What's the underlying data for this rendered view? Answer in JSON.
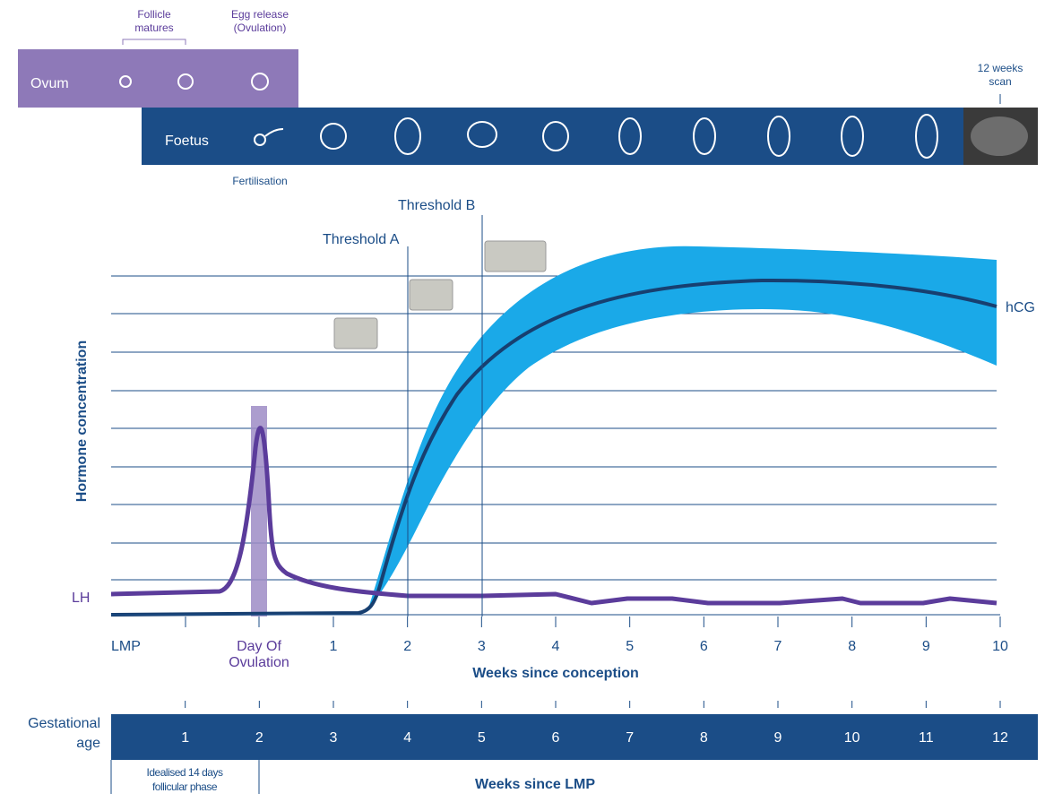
{
  "stages": {
    "follicle_matures": [
      "Follicle",
      "matures"
    ],
    "egg_release": [
      "Egg release",
      "(Ovulation)"
    ],
    "ovum": "Ovum",
    "foetus": "Foetus",
    "fertilisation": "Fertilisation",
    "scan": [
      "12 weeks",
      "scan"
    ]
  },
  "graph": {
    "threshold_a": "Threshold A",
    "threshold_b": "Threshold B",
    "hcg": "hCG",
    "lh": "LH",
    "y_axis_label": "Hormone concentration",
    "x_labels": {
      "lmp": "LMP",
      "ovulation": [
        "Day Of",
        "Ovulation"
      ],
      "weeks": [
        "1",
        "2",
        "3",
        "4",
        "5",
        "6",
        "7",
        "8",
        "9",
        "10"
      ]
    },
    "x_axis_label": "Weeks since conception"
  },
  "gestation": {
    "label": [
      "Gestational",
      "age"
    ],
    "weeks": [
      "1",
      "2",
      "3",
      "4",
      "5",
      "6",
      "7",
      "8",
      "9",
      "10",
      "11",
      "12"
    ],
    "follicular_note": [
      "Idealised 14 days",
      "follicular phase"
    ],
    "axis_label": "Weeks since LMP"
  }
}
